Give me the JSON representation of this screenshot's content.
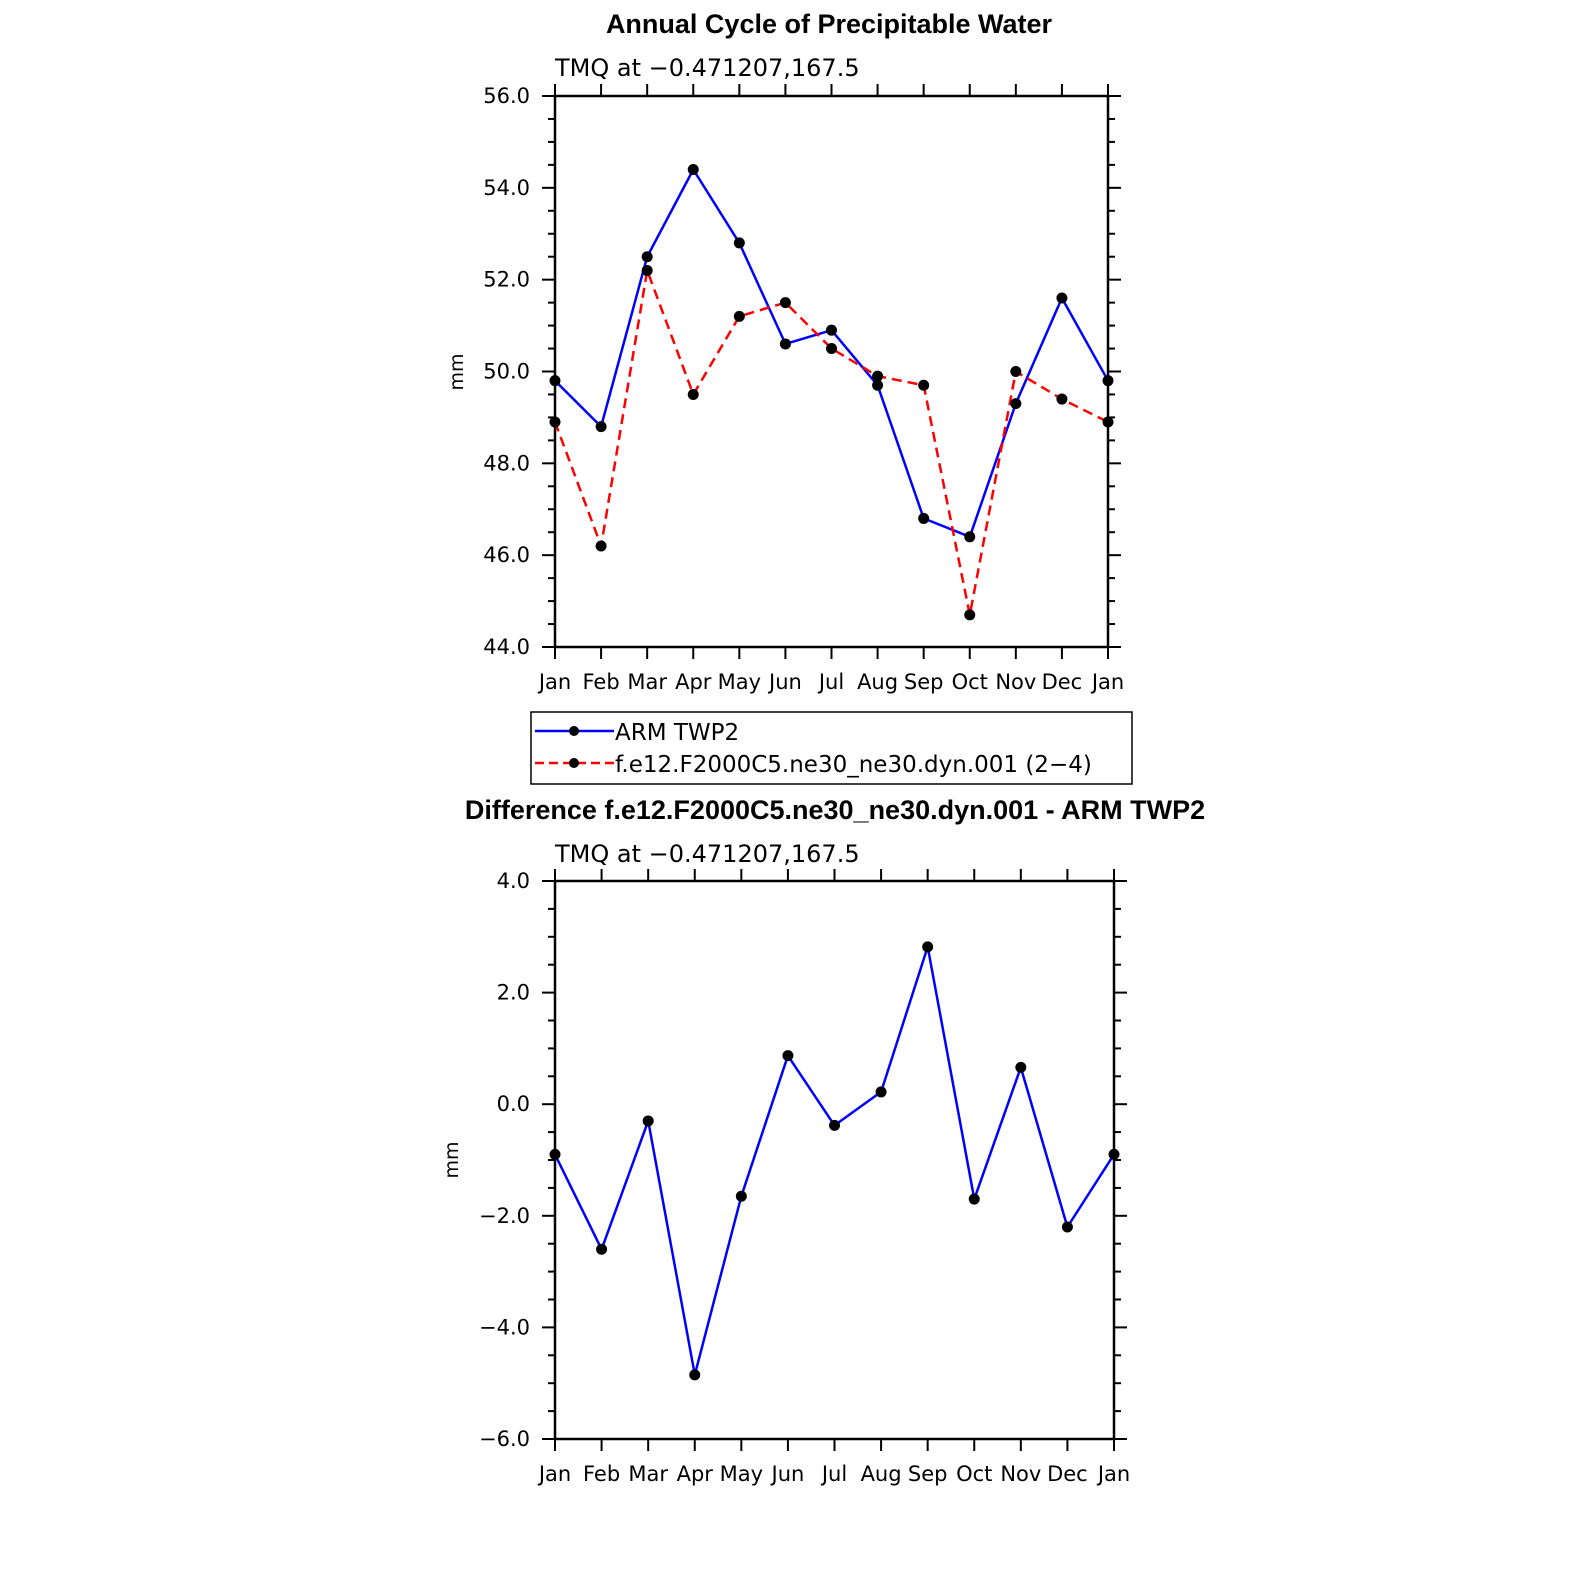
{
  "chart_data": [
    {
      "type": "line",
      "title": "Annual Cycle of Precipitable Water",
      "subtitle": "TMQ at −0.471207,167.5",
      "xlabel": "",
      "ylabel": "mm",
      "categories": [
        "Jan",
        "Feb",
        "Mar",
        "Apr",
        "May",
        "Jun",
        "Jul",
        "Aug",
        "Sep",
        "Oct",
        "Nov",
        "Dec",
        "Jan"
      ],
      "ylim": [
        44.0,
        56.0
      ],
      "yticks": [
        44.0,
        46.0,
        48.0,
        50.0,
        52.0,
        54.0,
        56.0
      ],
      "ytick_labels": [
        "44.0",
        "46.0",
        "48.0",
        "50.0",
        "52.0",
        "54.0",
        "56.0"
      ],
      "series": [
        {
          "name": "ARM TWP2",
          "color": "#0000ff",
          "dash": "solid",
          "values": [
            49.8,
            48.8,
            52.5,
            54.4,
            52.8,
            50.6,
            50.9,
            49.7,
            46.8,
            46.4,
            49.3,
            51.6,
            49.8
          ]
        },
        {
          "name": "f.e12.F2000C5.ne30_ne30.dyn.001 (2−4)",
          "color": "#ff0000",
          "dash": "dashed",
          "values": [
            48.9,
            46.2,
            52.2,
            49.5,
            51.2,
            51.5,
            50.5,
            49.9,
            49.7,
            44.7,
            50.0,
            49.4,
            48.9
          ]
        }
      ],
      "legend": {
        "placement": "below",
        "entries": [
          "ARM TWP2",
          "f.e12.F2000C5.ne30_ne30.dyn.001 (2−4)"
        ]
      }
    },
    {
      "type": "line",
      "title": "Difference f.e12.F2000C5.ne30_ne30.dyn.001 - ARM TWP2",
      "subtitle": "TMQ at −0.471207,167.5",
      "xlabel": "",
      "ylabel": "mm",
      "categories": [
        "Jan",
        "Feb",
        "Mar",
        "Apr",
        "May",
        "Jun",
        "Jul",
        "Aug",
        "Sep",
        "Oct",
        "Nov",
        "Dec",
        "Jan"
      ],
      "ylim": [
        -6.0,
        4.0
      ],
      "yticks": [
        -6.0,
        -4.0,
        -2.0,
        0.0,
        2.0,
        4.0
      ],
      "ytick_labels": [
        "−6.0",
        "−4.0",
        "−2.0",
        "0.0",
        "2.0",
        "4.0"
      ],
      "series": [
        {
          "name": "Difference",
          "color": "#0000ff",
          "dash": "solid",
          "values": [
            -0.9,
            -2.6,
            -0.3,
            -4.85,
            -1.65,
            0.87,
            -0.38,
            0.22,
            2.82,
            -1.7,
            0.66,
            -2.2,
            -0.9
          ]
        }
      ]
    }
  ]
}
